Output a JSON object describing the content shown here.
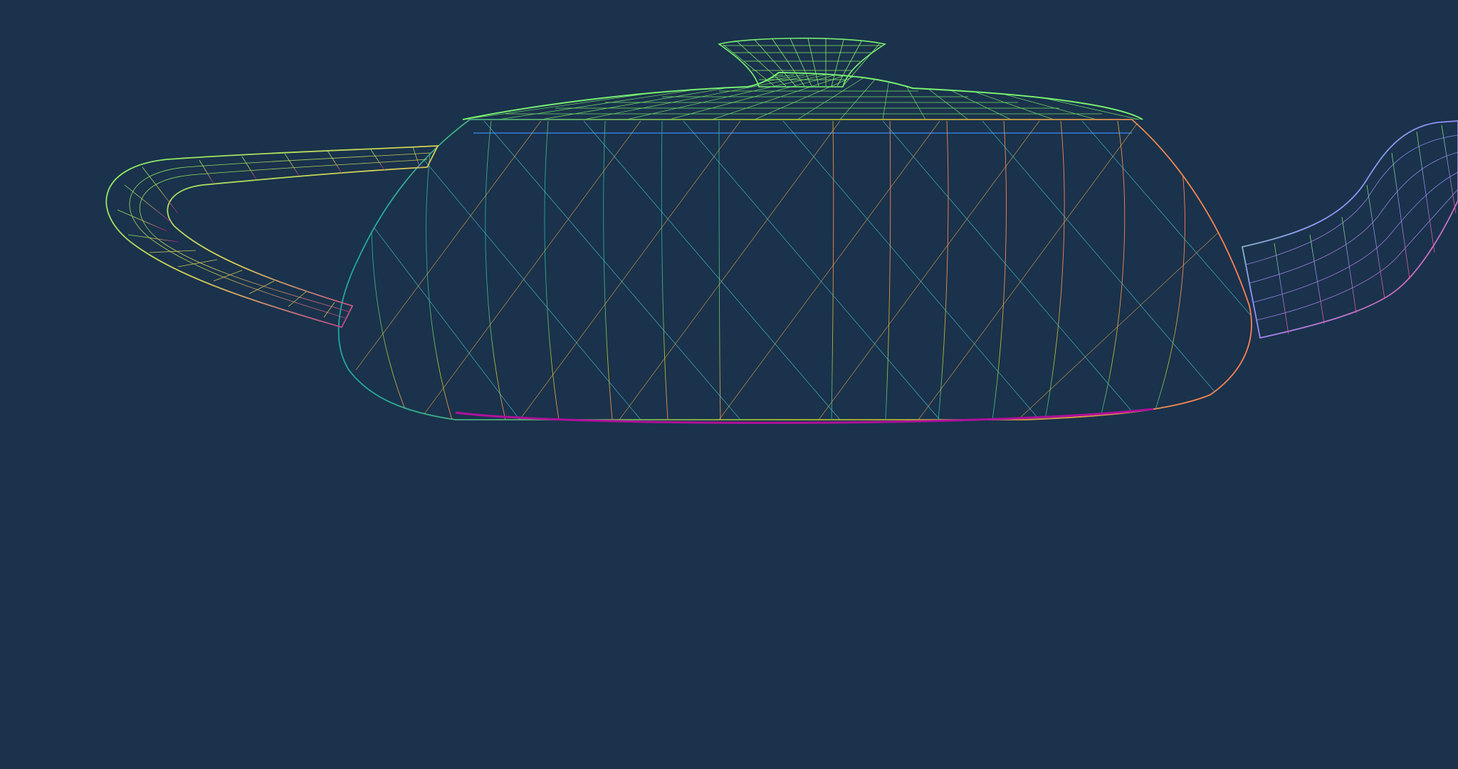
{
  "viewport": {
    "background": "#1a324b",
    "render_mode": "wireframe"
  },
  "model": {
    "name_icon": "teapot-wireframe-icon",
    "colors": {
      "top": "#7ef26d",
      "bottom": "#b0109c",
      "left": "#27a8a0",
      "center": "#a6b12e",
      "right": "#ff7d57",
      "rim": "#3b8cff"
    },
    "parts": [
      "lid-knob",
      "lid",
      "body",
      "handle",
      "spout"
    ]
  }
}
